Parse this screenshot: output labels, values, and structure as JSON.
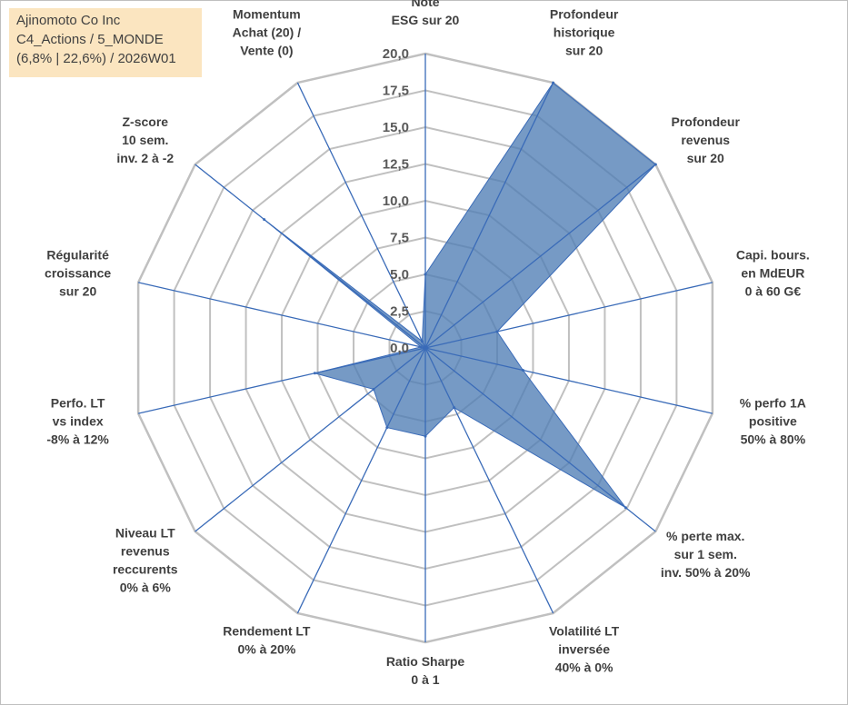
{
  "title_box": {
    "line1": "Ajinomoto Co Inc",
    "line2": "C4_Actions / 5_MONDE",
    "line3": "(6,8% | 22,6%) / 2026W01"
  },
  "colors": {
    "fill": "#4f7eb5",
    "grid": "#c0c0c0",
    "spoke": "#3a6bb8",
    "title_bg": "#fbe5c0"
  },
  "chart_data": {
    "type": "radar",
    "rmin": 0,
    "rmax": 20,
    "ticks": [
      "0,0",
      "2,5",
      "5,0",
      "7,5",
      "10,0",
      "12,5",
      "15,0",
      "17,5",
      "20,0"
    ],
    "tick_values": [
      0,
      2.5,
      5,
      7.5,
      10,
      12.5,
      15,
      17.5,
      20
    ],
    "axes": [
      {
        "label": [
          "Note",
          "ESG sur 20"
        ],
        "value": 5.0
      },
      {
        "label": [
          "Profondeur",
          "historique",
          "sur 20"
        ],
        "value": 20.0
      },
      {
        "label": [
          "Profondeur",
          "revenus",
          "sur 20"
        ],
        "value": 20.0
      },
      {
        "label": [
          "Capi. bours.",
          "en MdEUR",
          "0 à 60 G€"
        ],
        "value": 5.0
      },
      {
        "label": [
          "% perfo 1A",
          "positive",
          "50% à 80%"
        ],
        "value": 6.8
      },
      {
        "label": [
          "% perte max.",
          "sur 1 sem.",
          "inv. 50% à 20%"
        ],
        "value": 17.4
      },
      {
        "label": [
          "Volatilité LT",
          "inversée",
          "40% à 0%"
        ],
        "value": 4.5
      },
      {
        "label": [
          "Ratio Sharpe",
          "0 à 1"
        ],
        "value": 6.0
      },
      {
        "label": [
          "Rendement LT",
          "0% à 20%"
        ],
        "value": 6.0
      },
      {
        "label": [
          "Niveau LT",
          "revenus",
          "reccurents",
          "0% à 6%"
        ],
        "value": 4.5
      },
      {
        "label": [
          "Perfo. LT",
          "vs index",
          "-8% à 12%"
        ],
        "value": 7.7
      },
      {
        "label": [
          "Régularité",
          "croissance",
          "sur 20"
        ],
        "value": 0.3
      },
      {
        "label": [
          "Z-score",
          "10 sem.",
          "inv. 2 à -2"
        ],
        "value": 14.0
      },
      {
        "label": [
          "Momentum",
          "Achat (20) /",
          "Vente (0)"
        ],
        "value": 0.5
      }
    ]
  }
}
